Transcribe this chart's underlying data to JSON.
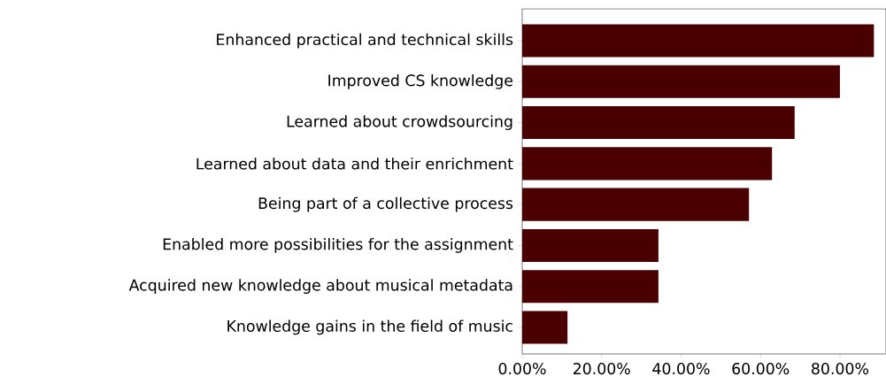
{
  "chart_data": {
    "type": "bar",
    "orientation": "horizontal",
    "categories": [
      "Enhanced practical and technical skills",
      "Improved CS knowledge",
      "Learned about crowdsourcing",
      "Learned about data and their enrichment",
      "Being part of a collective process",
      "Enabled more possibilities for the assignment",
      "Acquired new knowledge about musical metadata",
      "Knowledge gains in the field of music"
    ],
    "values": [
      88.6,
      80.0,
      68.6,
      62.9,
      57.1,
      34.3,
      34.3,
      11.4
    ],
    "color": "#4a0000",
    "xlim": [
      0,
      91.6
    ],
    "xticks": [
      {
        "value": 0,
        "label": "0.00%"
      },
      {
        "value": 20,
        "label": "20.00%"
      },
      {
        "value": 40,
        "label": "40.00%"
      },
      {
        "value": 60,
        "label": "60.00%"
      },
      {
        "value": 80,
        "label": "80.00%"
      }
    ]
  }
}
